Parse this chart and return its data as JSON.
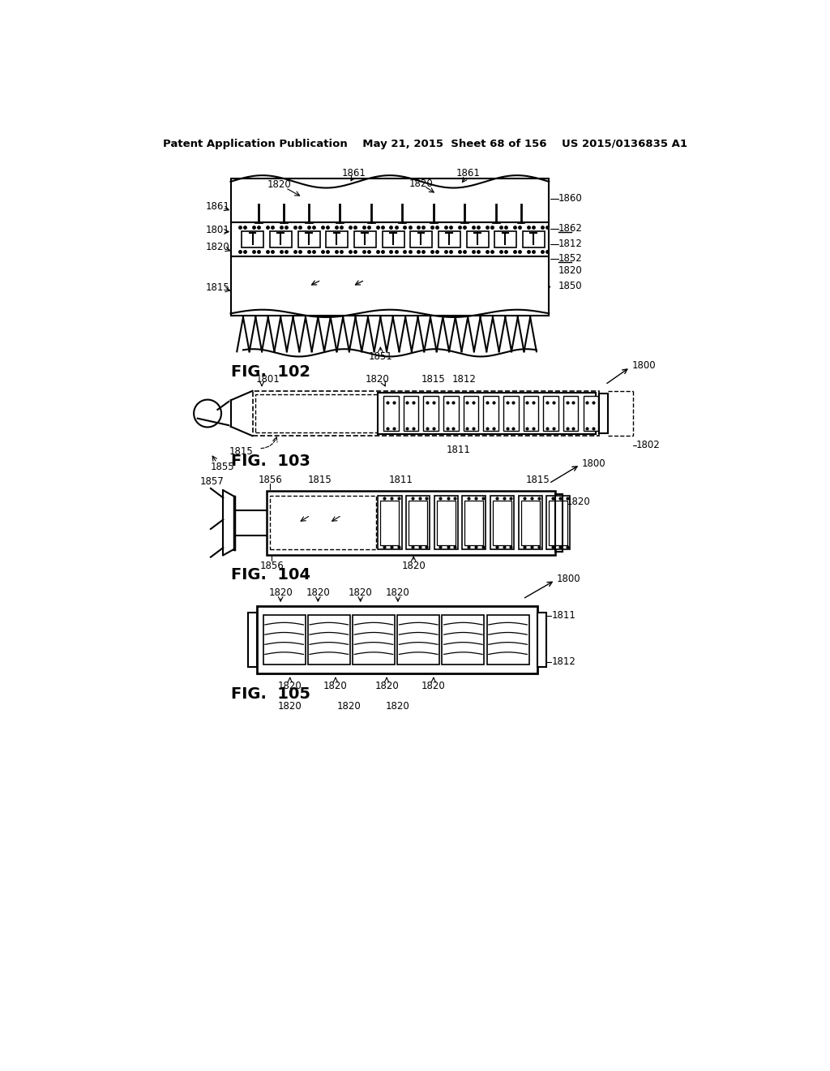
{
  "bg_color": "#ffffff",
  "text_color": "#000000",
  "line_color": "#000000",
  "header_text": "Patent Application Publication    May 21, 2015  Sheet 68 of 156    US 2015/0136835 A1",
  "fig102_label": "FIG.  102",
  "fig103_label": "FIG.  103",
  "fig104_label": "FIG.  104",
  "fig105_label": "FIG.  105"
}
